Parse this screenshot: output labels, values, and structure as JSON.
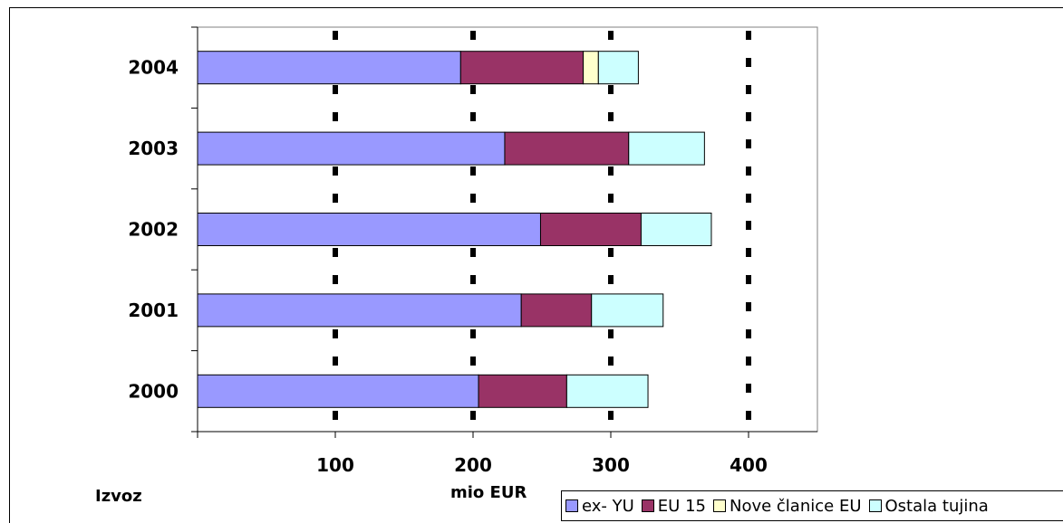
{
  "chart_data": {
    "type": "bar",
    "orientation": "horizontal",
    "stacked": true,
    "categories": [
      "2004",
      "2003",
      "2002",
      "2001",
      "2000"
    ],
    "series": [
      {
        "name": "ex- YU",
        "color": "#9999ff",
        "values": [
          191,
          223,
          249,
          235,
          204
        ]
      },
      {
        "name": "EU 15",
        "color": "#993366",
        "values": [
          89,
          90,
          73,
          51,
          64
        ]
      },
      {
        "name": "Nove članice EU",
        "color": "#ffffcc",
        "values": [
          11,
          0,
          0,
          0,
          0
        ]
      },
      {
        "name": "Ostala tujina",
        "color": "#ccffff",
        "values": [
          29,
          55,
          51,
          52,
          59
        ]
      }
    ],
    "x_ticks": [
      "100",
      "200",
      "300",
      "400"
    ],
    "xlim": [
      0,
      450
    ],
    "gridlines": "vertical-dashed",
    "legend_position": "bottom-right",
    "xlabel": "mio EUR",
    "corner_label": "Izvoz"
  }
}
